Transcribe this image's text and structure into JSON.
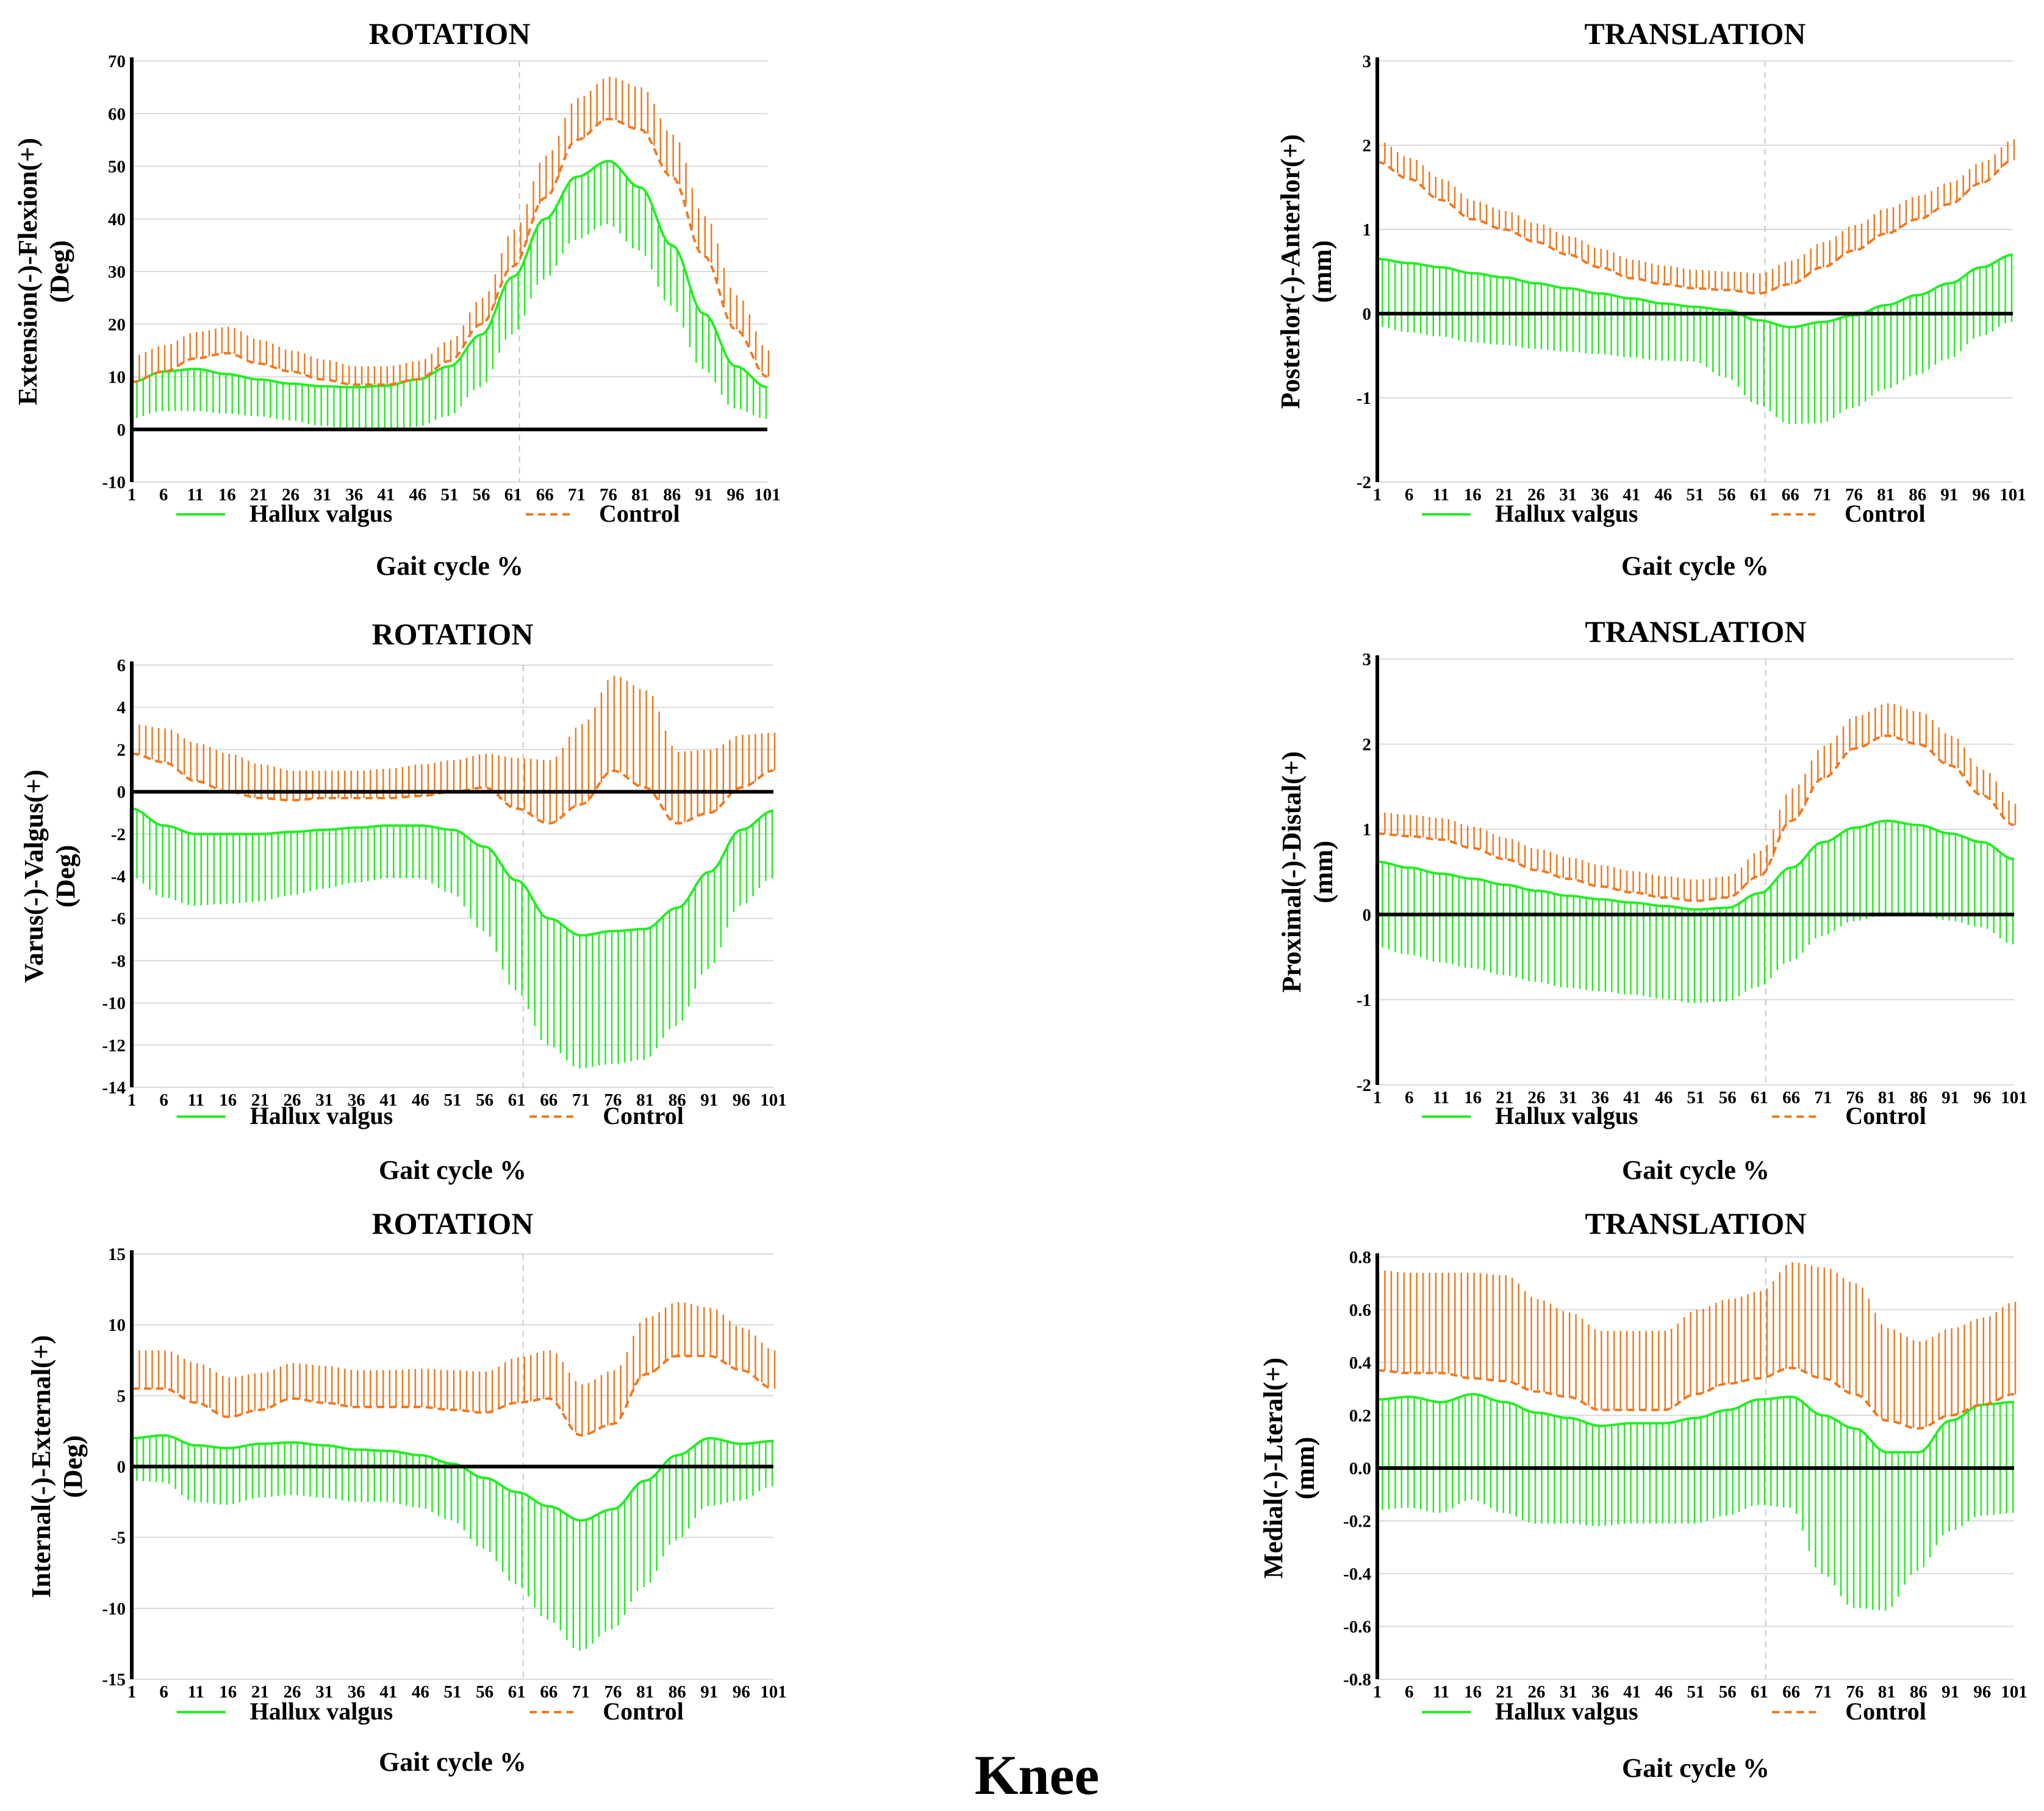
{
  "figure_label": "Knee",
  "colors": {
    "hallux": "#22ee22",
    "control": "#f07820",
    "zero_line": "#000000",
    "grid": "#d9d9d9",
    "swing_marker": "#c8c8c8"
  },
  "chart_data": [
    {
      "type": "line",
      "title": "ROTATION",
      "ylabel_line1": "Extension(-)-Flexion(+)",
      "ylabel_line2": "(Deg)",
      "xlabel": "Gait cycle %",
      "ylim": [
        -10,
        70
      ],
      "yticks": [
        -10,
        0,
        10,
        20,
        30,
        40,
        50,
        60,
        70
      ],
      "xlim": [
        1,
        101
      ],
      "xticks": [
        1,
        6,
        11,
        16,
        21,
        26,
        31,
        36,
        41,
        46,
        51,
        56,
        61,
        66,
        71,
        76,
        81,
        86,
        91,
        96,
        101
      ],
      "x_keys": [
        1,
        6,
        11,
        16,
        21,
        26,
        31,
        36,
        41,
        46,
        51,
        56,
        61,
        66,
        71,
        76,
        81,
        86,
        91,
        96,
        101
      ],
      "legend": [
        "Hallux valgus",
        "Control"
      ],
      "series": [
        {
          "name": "Hallux valgus",
          "style": "solid",
          "mean": [
            9,
            11,
            11.5,
            10.5,
            9.5,
            8.7,
            8.2,
            8,
            8.3,
            9.5,
            12,
            18,
            29,
            40,
            48,
            51,
            46,
            35,
            22,
            12,
            8
          ],
          "sd": [
            7,
            7.5,
            8,
            7.5,
            7,
            7,
            7.5,
            8,
            8.5,
            9,
            9.5,
            10,
            11,
            11.5,
            12,
            12,
            12,
            11.5,
            10.5,
            8,
            6
          ]
        },
        {
          "name": "Control",
          "style": "dashed",
          "mean": [
            9,
            11,
            13.5,
            14.5,
            12.5,
            11,
            9.5,
            8.5,
            8.5,
            9.5,
            13,
            20,
            31,
            44,
            55,
            59,
            57,
            48,
            33,
            19,
            10
          ],
          "sd": [
            5,
            5,
            5,
            5,
            4.5,
            4,
            3.8,
            3.5,
            3.5,
            3.5,
            4,
            5,
            7,
            8,
            8,
            8,
            8,
            8,
            7.5,
            6.5,
            5
          ]
        }
      ]
    },
    {
      "type": "line",
      "title": "TRANSLATION",
      "ylabel_line1": "Posterlor(-)-Anterlor(+)",
      "ylabel_line2": "(mm)",
      "xlabel": "Gait cycle %",
      "ylim": [
        -2,
        3
      ],
      "yticks": [
        -2,
        -1,
        0,
        1,
        2,
        3
      ],
      "xlim": [
        1,
        101
      ],
      "xticks": [
        1,
        6,
        11,
        16,
        21,
        26,
        31,
        36,
        41,
        46,
        51,
        56,
        61,
        66,
        71,
        76,
        81,
        86,
        91,
        96,
        101
      ],
      "x_keys": [
        1,
        6,
        11,
        16,
        21,
        26,
        31,
        36,
        41,
        46,
        51,
        56,
        61,
        66,
        71,
        76,
        81,
        86,
        91,
        96,
        101
      ],
      "legend": [
        "Hallux valgus",
        "Control"
      ],
      "series": [
        {
          "name": "Hallux valgus",
          "style": "solid",
          "mean": [
            0.65,
            0.6,
            0.55,
            0.48,
            0.43,
            0.36,
            0.3,
            0.24,
            0.18,
            0.12,
            0.08,
            0.04,
            -0.08,
            -0.16,
            -0.1,
            -0.02,
            0.1,
            0.22,
            0.36,
            0.55,
            0.7
          ],
          "sd": [
            0.8,
            0.82,
            0.82,
            0.82,
            0.8,
            0.78,
            0.75,
            0.72,
            0.7,
            0.68,
            0.65,
            0.8,
            1.0,
            1.15,
            1.2,
            1.1,
            1.0,
            0.95,
            0.9,
            0.82,
            0.8
          ]
        },
        {
          "name": "Control",
          "style": "dashed",
          "mean": [
            1.8,
            1.6,
            1.35,
            1.12,
            1.0,
            0.85,
            0.7,
            0.55,
            0.42,
            0.35,
            0.3,
            0.28,
            0.24,
            0.35,
            0.55,
            0.75,
            0.95,
            1.12,
            1.3,
            1.55,
            1.82
          ],
          "sd": [
            0.25,
            0.25,
            0.25,
            0.22,
            0.22,
            0.22,
            0.22,
            0.22,
            0.22,
            0.22,
            0.22,
            0.22,
            0.24,
            0.28,
            0.3,
            0.3,
            0.3,
            0.28,
            0.26,
            0.25,
            0.25
          ]
        }
      ]
    },
    {
      "type": "line",
      "title": "ROTATION",
      "ylabel_line1": "Varus(-)-Valgus(+)",
      "ylabel_line2": "(Deg)",
      "xlabel": "Gait cycle %",
      "ylim": [
        -14,
        6
      ],
      "yticks": [
        -14,
        -12,
        -10,
        -8,
        -6,
        -4,
        -2,
        0,
        2,
        4,
        6
      ],
      "xlim": [
        1,
        101
      ],
      "xticks": [
        1,
        6,
        11,
        16,
        21,
        26,
        31,
        36,
        41,
        46,
        51,
        56,
        61,
        66,
        71,
        76,
        81,
        86,
        91,
        96,
        101
      ],
      "x_keys": [
        1,
        6,
        11,
        16,
        21,
        26,
        31,
        36,
        41,
        46,
        51,
        56,
        61,
        66,
        71,
        76,
        81,
        86,
        91,
        96,
        101
      ],
      "legend": [
        "Hallux valgus",
        "Control"
      ],
      "series": [
        {
          "name": "Hallux valgus",
          "style": "solid",
          "mean": [
            -0.8,
            -1.6,
            -2.0,
            -2.0,
            -2.0,
            -1.9,
            -1.8,
            -1.7,
            -1.6,
            -1.6,
            -1.8,
            -2.6,
            -4.2,
            -6.0,
            -6.8,
            -6.6,
            -6.5,
            -5.5,
            -3.8,
            -1.8,
            -0.9
          ],
          "sd": [
            3.2,
            3.4,
            3.4,
            3.3,
            3.2,
            3.0,
            2.8,
            2.6,
            2.5,
            2.5,
            3.0,
            4.0,
            5.2,
            6.0,
            6.3,
            6.3,
            6.2,
            5.6,
            4.6,
            3.6,
            3.2
          ]
        },
        {
          "name": "Control",
          "style": "dashed",
          "mean": [
            1.8,
            1.4,
            0.5,
            0.0,
            -0.3,
            -0.4,
            -0.3,
            -0.3,
            -0.3,
            -0.2,
            0.0,
            0.2,
            -0.8,
            -1.5,
            -0.6,
            1.0,
            0.2,
            -1.5,
            -1.0,
            0.2,
            1.0
          ],
          "sd": [
            1.4,
            1.6,
            1.8,
            1.8,
            1.6,
            1.4,
            1.3,
            1.3,
            1.4,
            1.5,
            1.5,
            1.6,
            2.4,
            3.0,
            3.8,
            4.5,
            4.6,
            3.4,
            3.0,
            2.5,
            1.8
          ]
        }
      ]
    },
    {
      "type": "line",
      "title": "TRANSLATION",
      "ylabel_line1": "Proximal(-)-Distal(+)",
      "ylabel_line2": "(mm)",
      "xlabel": "Gait cycle %",
      "ylim": [
        -2,
        3
      ],
      "yticks": [
        -2,
        -1,
        0,
        1,
        2,
        3
      ],
      "xlim": [
        1,
        101
      ],
      "xticks": [
        1,
        6,
        11,
        16,
        21,
        26,
        31,
        36,
        41,
        46,
        51,
        56,
        61,
        66,
        71,
        76,
        81,
        86,
        91,
        96,
        101
      ],
      "x_keys": [
        1,
        6,
        11,
        16,
        21,
        26,
        31,
        36,
        41,
        46,
        51,
        56,
        61,
        66,
        71,
        76,
        81,
        86,
        91,
        96,
        101
      ],
      "legend": [
        "Hallux valgus",
        "Control"
      ],
      "series": [
        {
          "name": "Hallux valgus",
          "style": "solid",
          "mean": [
            0.62,
            0.55,
            0.48,
            0.42,
            0.35,
            0.28,
            0.22,
            0.18,
            0.14,
            0.1,
            0.06,
            0.08,
            0.25,
            0.55,
            0.85,
            1.02,
            1.1,
            1.05,
            0.95,
            0.85,
            0.65
          ],
          "sd": [
            1.0,
            1.02,
            1.04,
            1.05,
            1.06,
            1.07,
            1.08,
            1.08,
            1.08,
            1.09,
            1.1,
            1.1,
            1.1,
            1.1,
            1.1,
            1.1,
            1.1,
            1.05,
            1.02,
            1.0,
            1.0
          ]
        },
        {
          "name": "Control",
          "style": "dashed",
          "mean": [
            0.95,
            0.92,
            0.88,
            0.78,
            0.65,
            0.52,
            0.42,
            0.33,
            0.26,
            0.2,
            0.16,
            0.2,
            0.45,
            1.1,
            1.6,
            1.95,
            2.1,
            2.0,
            1.75,
            1.4,
            1.05
          ],
          "sd": [
            0.25,
            0.25,
            0.25,
            0.25,
            0.25,
            0.25,
            0.25,
            0.25,
            0.25,
            0.25,
            0.25,
            0.25,
            0.3,
            0.38,
            0.38,
            0.38,
            0.38,
            0.38,
            0.35,
            0.3,
            0.25
          ]
        }
      ]
    },
    {
      "type": "line",
      "title": "ROTATION",
      "ylabel_line1": "Internal(-)-External(+)",
      "ylabel_line2": "(Deg)",
      "xlabel": "Gait cycle %",
      "ylim": [
        -15,
        15
      ],
      "yticks": [
        -15,
        -10,
        -5,
        0,
        5,
        10,
        15
      ],
      "xlim": [
        1,
        101
      ],
      "xticks": [
        1,
        6,
        11,
        16,
        21,
        26,
        31,
        36,
        41,
        46,
        51,
        56,
        61,
        66,
        71,
        76,
        81,
        86,
        91,
        96,
        101
      ],
      "x_keys": [
        1,
        6,
        11,
        16,
        21,
        26,
        31,
        36,
        41,
        46,
        51,
        56,
        61,
        66,
        71,
        76,
        81,
        86,
        91,
        96,
        101
      ],
      "legend": [
        "Hallux valgus",
        "Control"
      ],
      "series": [
        {
          "name": "Hallux valgus",
          "style": "solid",
          "mean": [
            2.0,
            2.2,
            1.5,
            1.3,
            1.6,
            1.7,
            1.5,
            1.2,
            1.1,
            0.8,
            0.2,
            -0.8,
            -1.8,
            -2.8,
            -3.8,
            -3.0,
            -1.0,
            0.8,
            2.0,
            1.6,
            1.8
          ],
          "sd": [
            3.0,
            3.3,
            4.0,
            4.0,
            3.8,
            3.7,
            3.7,
            3.7,
            3.6,
            3.7,
            4.0,
            5.0,
            6.5,
            8.0,
            9.2,
            8.5,
            7.5,
            6.0,
            4.8,
            4.0,
            3.2
          ]
        },
        {
          "name": "Control",
          "style": "dashed",
          "mean": [
            5.5,
            5.5,
            4.5,
            3.5,
            4.0,
            4.8,
            4.5,
            4.2,
            4.2,
            4.2,
            4.0,
            3.8,
            4.5,
            4.8,
            2.2,
            3.0,
            6.5,
            7.8,
            7.8,
            6.8,
            5.5
          ],
          "sd": [
            2.7,
            2.7,
            2.8,
            2.8,
            2.6,
            2.5,
            2.6,
            2.6,
            2.6,
            2.7,
            2.8,
            2.9,
            3.2,
            3.4,
            3.6,
            3.8,
            4.0,
            3.8,
            3.4,
            3.0,
            2.7
          ]
        }
      ]
    },
    {
      "type": "line",
      "title": "TRANSLATION",
      "ylabel_line1": "Medial(-)-Lteral(+)",
      "ylabel_line2": "(mm)",
      "xlabel": "Gait cycle %",
      "ylim": [
        -0.8,
        0.8
      ],
      "yticks": [
        -0.8,
        -0.6,
        -0.4,
        -0.2,
        0.0,
        0.2,
        0.4,
        0.6,
        0.8
      ],
      "xlim": [
        1,
        101
      ],
      "xticks": [
        1,
        6,
        11,
        16,
        21,
        26,
        31,
        36,
        41,
        46,
        51,
        56,
        61,
        66,
        71,
        76,
        81,
        86,
        91,
        96,
        101
      ],
      "x_keys": [
        1,
        6,
        11,
        16,
        21,
        26,
        31,
        36,
        41,
        46,
        51,
        56,
        61,
        66,
        71,
        76,
        81,
        86,
        91,
        96,
        101
      ],
      "legend": [
        "Hallux valgus",
        "Control"
      ],
      "series": [
        {
          "name": "Hallux valgus",
          "style": "solid",
          "mean": [
            0.26,
            0.27,
            0.25,
            0.28,
            0.25,
            0.21,
            0.19,
            0.16,
            0.17,
            0.17,
            0.19,
            0.22,
            0.26,
            0.27,
            0.2,
            0.15,
            0.06,
            0.06,
            0.18,
            0.24,
            0.25
          ],
          "sd": [
            0.42,
            0.42,
            0.42,
            0.4,
            0.42,
            0.42,
            0.4,
            0.38,
            0.38,
            0.38,
            0.4,
            0.4,
            0.4,
            0.42,
            0.6,
            0.68,
            0.6,
            0.45,
            0.42,
            0.42,
            0.42
          ]
        },
        {
          "name": "Control",
          "style": "dashed",
          "mean": [
            0.37,
            0.36,
            0.36,
            0.34,
            0.33,
            0.29,
            0.27,
            0.22,
            0.22,
            0.22,
            0.28,
            0.32,
            0.34,
            0.38,
            0.34,
            0.28,
            0.18,
            0.15,
            0.2,
            0.24,
            0.28
          ],
          "sd": [
            0.38,
            0.38,
            0.38,
            0.4,
            0.4,
            0.35,
            0.32,
            0.3,
            0.3,
            0.3,
            0.32,
            0.32,
            0.33,
            0.4,
            0.42,
            0.42,
            0.35,
            0.33,
            0.33,
            0.33,
            0.35
          ]
        }
      ]
    }
  ]
}
